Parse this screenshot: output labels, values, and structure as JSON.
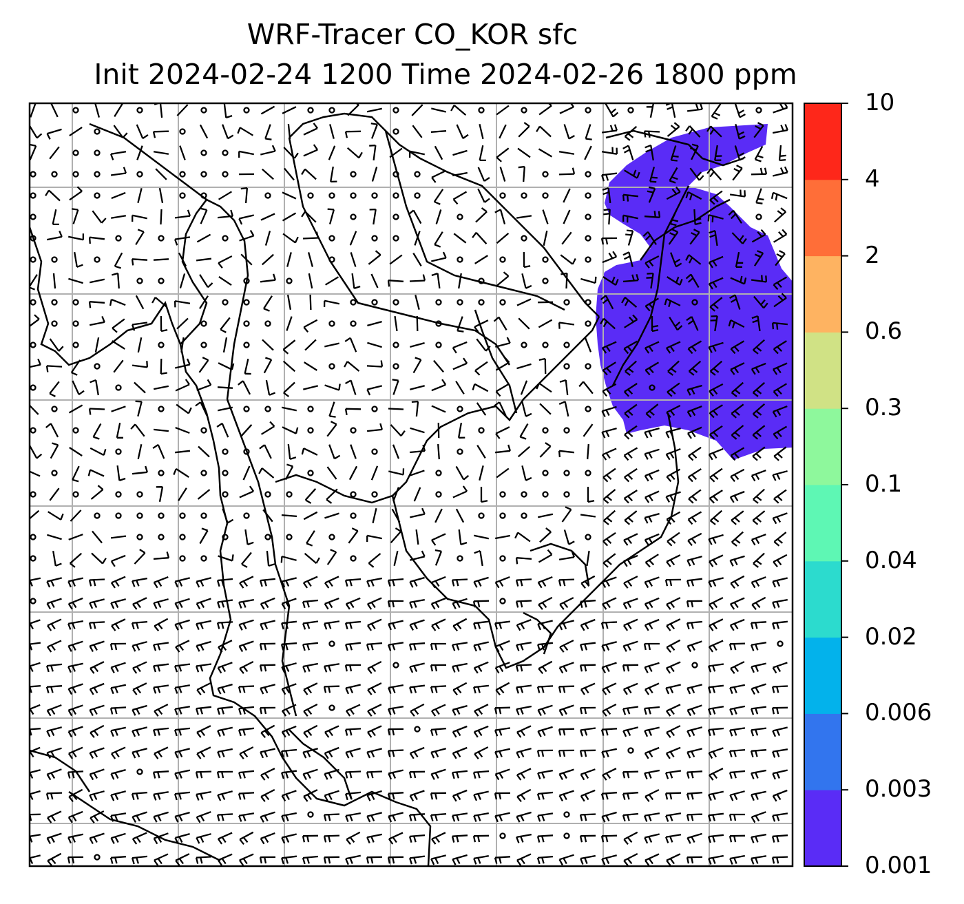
{
  "title": {
    "line1": "WRF-Tracer CO_KOR sfc",
    "line2": "Init 2024-02-24 1200 Time 2024-02-26 1800 ppm"
  },
  "colorbar": {
    "levels": [
      "0.001",
      "0.003",
      "0.006",
      "0.02",
      "0.04",
      "0.1",
      "0.3",
      "0.6",
      "2",
      "4",
      "10"
    ],
    "colors": [
      "#5a2cf6",
      "#3275ee",
      "#03b2eb",
      "#2cdbce",
      "#5ef7b4",
      "#8ef89c",
      "#d0e285",
      "#feb361",
      "#ff6e38",
      "#fe271a"
    ]
  },
  "map": {
    "tracer_fill_color": "#5a2cf6",
    "tracer_fill_level": "0.001",
    "gridlines": true,
    "coastlines": true,
    "wind_barbs": true
  }
}
